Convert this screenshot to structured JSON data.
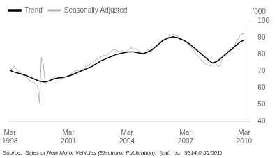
{
  "chart_data": {
    "type": "line",
    "ylabel": "'000",
    "annotations": [
      "Source:  Sales of New Motor Vehicles (Electronic Publication),  (cat.  no.  9314.0.55.001)"
    ],
    "legend": "upper left",
    "grid": false,
    "xlim": [
      1998.067,
      2010.467
    ],
    "xticks": [
      {
        "value": 1998.1667,
        "label": "Mar\n1998"
      },
      {
        "value": 2001.1667,
        "label": "Mar\n2001"
      },
      {
        "value": 2004.1667,
        "label": "Mar\n2004"
      },
      {
        "value": 2007.1667,
        "label": "Mar\n2007"
      },
      {
        "value": 2010.1667,
        "label": "Mar\n2010"
      }
    ],
    "ylim": [
      40,
      100
    ],
    "yticks": [
      40,
      50,
      60,
      70,
      80,
      90,
      100
    ],
    "x": [
      1998.167,
      1998.2678,
      1998.3687,
      1998.4695,
      1998.5704,
      1998.6712,
      1998.772,
      1998.8729,
      1998.9737,
      1999.0746,
      1999.1754,
      1999.2762,
      1999.3771,
      1999.4779,
      1999.5788,
      1999.6796,
      1999.7804,
      1999.8813,
      1999.9821,
      2000.083,
      2000.1838,
      2000.2846,
      2000.3855,
      2000.4863,
      2000.5872,
      2000.688,
      2000.7888,
      2000.8897,
      2000.9905,
      2001.0914,
      2001.1922,
      2001.2931,
      2001.3939,
      2001.4947,
      2001.5956,
      2001.6964,
      2001.7973,
      2001.8981,
      2001.9989,
      2002.0998,
      2002.2006,
      2002.3015,
      2002.4023,
      2002.5031,
      2002.604,
      2002.7048,
      2002.8057,
      2002.9065,
      2003.0073,
      2003.1082,
      2003.209,
      2003.3099,
      2003.4107,
      2003.5115,
      2003.6124,
      2003.7132,
      2003.8141,
      2003.9149,
      2004.0157,
      2004.1166,
      2004.2174,
      2004.3183,
      2004.4191,
      2004.5199,
      2004.6208,
      2004.7216,
      2004.8225,
      2004.9233,
      2005.0241,
      2005.125,
      2005.2258,
      2005.3267,
      2005.4275,
      2005.5283,
      2005.6292,
      2005.73,
      2005.8309,
      2005.9317,
      2006.0325,
      2006.1334,
      2006.2342,
      2006.3351,
      2006.4359,
      2006.5367,
      2006.6376,
      2006.7384,
      2006.8393,
      2006.9401,
      2007.041,
      2007.1418,
      2007.2426,
      2007.3435,
      2007.4443,
      2007.5452,
      2007.646,
      2007.7468,
      2007.8477,
      2007.9485,
      2008.0494,
      2008.1502,
      2008.251,
      2008.3519,
      2008.4527,
      2008.5536,
      2008.6544,
      2008.7552,
      2008.8561,
      2008.9569,
      2009.0578,
      2009.1586,
      2009.2594,
      2009.3603,
      2009.4611,
      2009.562,
      2009.6628,
      2009.7636,
      2009.8645,
      2009.9653,
      2010.0662,
      2010.167
    ],
    "series": [
      {
        "name": "Trend",
        "color": "#000000",
        "values": [
          70.5,
          70.0,
          69.5,
          69.2,
          68.8,
          68.5,
          68.2,
          67.8,
          67.5,
          67.0,
          66.5,
          66.0,
          65.5,
          65.0,
          64.5,
          64.0,
          63.8,
          63.5,
          63.5,
          63.8,
          64.2,
          64.8,
          65.2,
          65.5,
          65.8,
          66.0,
          66.0,
          66.2,
          66.5,
          66.8,
          67.2,
          67.5,
          68.0,
          68.5,
          69.0,
          69.5,
          70.0,
          70.5,
          71.0,
          71.5,
          72.0,
          72.5,
          73.0,
          73.8,
          74.5,
          75.2,
          76.0,
          76.5,
          77.0,
          77.5,
          78.0,
          78.5,
          79.0,
          79.5,
          80.0,
          80.2,
          80.5,
          80.8,
          81.0,
          81.2,
          81.5,
          81.5,
          81.5,
          81.5,
          81.2,
          81.0,
          80.8,
          80.5,
          80.5,
          81.0,
          81.5,
          82.0,
          82.5,
          83.5,
          84.5,
          85.5,
          86.5,
          87.5,
          88.5,
          89.0,
          89.5,
          90.0,
          90.2,
          90.5,
          90.2,
          90.0,
          89.5,
          89.0,
          88.5,
          88.0,
          87.2,
          86.5,
          85.5,
          84.5,
          83.5,
          82.5,
          81.5,
          80.5,
          79.5,
          78.5,
          77.5,
          76.5,
          75.5,
          75.0,
          75.2,
          75.8,
          76.5,
          77.5,
          78.5,
          79.5,
          80.5,
          81.5,
          82.5,
          83.5,
          84.5,
          85.5,
          86.5,
          87.5,
          88.0,
          88.5
        ]
      },
      {
        "name": "Seasonally Adjusted",
        "color": "#b0b0b0",
        "values": [
          72.0,
          71.0,
          73.0,
          71.5,
          70.5,
          69.5,
          68.5,
          67.5,
          66.5,
          65.5,
          64.5,
          64.0,
          63.5,
          62.5,
          62.0,
          51.0,
          78.0,
          74.0,
          62.0,
          63.5,
          64.5,
          65.5,
          66.0,
          66.5,
          66.5,
          65.5,
          65.0,
          65.5,
          66.0,
          67.0,
          67.5,
          68.5,
          69.5,
          70.0,
          70.5,
          70.0,
          70.5,
          71.5,
          72.5,
          73.0,
          73.5,
          74.5,
          75.0,
          76.0,
          77.0,
          77.5,
          78.5,
          79.0,
          79.5,
          79.0,
          80.5,
          81.5,
          82.5,
          83.0,
          82.5,
          82.0,
          81.5,
          82.5,
          81.0,
          81.5,
          82.5,
          83.5,
          84.0,
          83.0,
          83.5,
          82.5,
          81.5,
          80.5,
          80.0,
          81.5,
          83.0,
          82.5,
          83.0,
          84.0,
          85.0,
          86.0,
          87.0,
          88.0,
          88.5,
          89.5,
          90.0,
          91.0,
          91.5,
          92.0,
          91.5,
          91.0,
          90.0,
          89.5,
          88.5,
          87.5,
          86.5,
          85.5,
          84.5,
          83.0,
          81.5,
          80.0,
          78.5,
          77.0,
          75.5,
          74.5,
          74.0,
          73.5,
          73.0,
          74.0,
          76.0,
          73.5,
          72.5,
          74.5,
          77.5,
          80.0,
          79.5,
          82.5,
          84.0,
          82.5,
          85.0,
          87.5,
          89.0,
          91.5,
          92.5,
          92.0
        ]
      }
    ]
  }
}
